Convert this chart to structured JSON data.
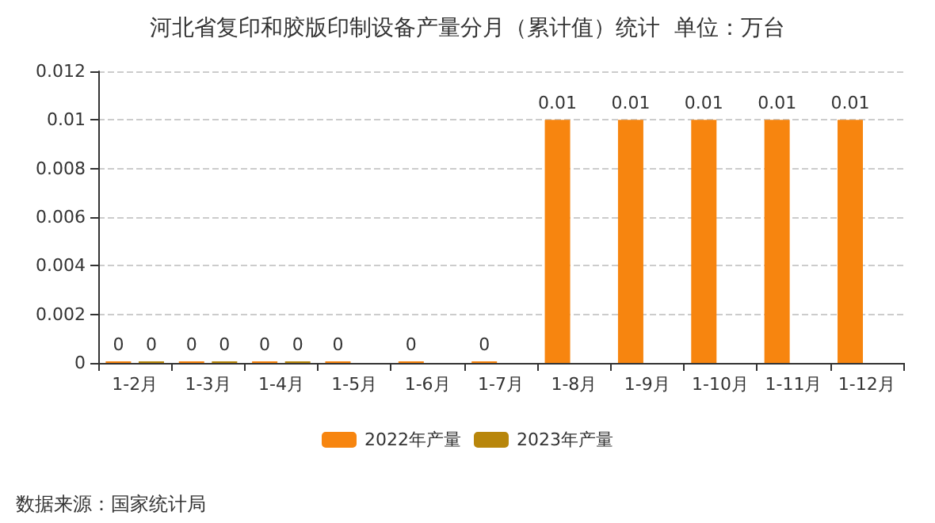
{
  "chart_data": {
    "type": "bar",
    "title": "河北省复印和胶版印制设备产量分月（累计值）统计  单位：万台",
    "categories": [
      "1-2月",
      "1-3月",
      "1-4月",
      "1-5月",
      "1-6月",
      "1-7月",
      "1-8月",
      "1-9月",
      "1-10月",
      "1-11月",
      "1-12月"
    ],
    "series": [
      {
        "name": "2022年产量",
        "color": "#f7850f",
        "values": [
          0,
          0,
          0,
          0,
          0,
          0,
          0.01,
          0.01,
          0.01,
          0.01,
          0.01
        ]
      },
      {
        "name": "2023年产量",
        "color": "#b8860b",
        "values": [
          0,
          0,
          0,
          null,
          null,
          null,
          null,
          null,
          null,
          null,
          null
        ]
      }
    ],
    "ylim": [
      0,
      0.012
    ],
    "yticks": [
      0,
      0.002,
      0.004,
      0.006,
      0.008,
      0.01,
      0.012
    ],
    "grid": "y",
    "legend": "bottom",
    "data_labels": true,
    "annotations": [
      "数据来源：国家统计局"
    ]
  }
}
